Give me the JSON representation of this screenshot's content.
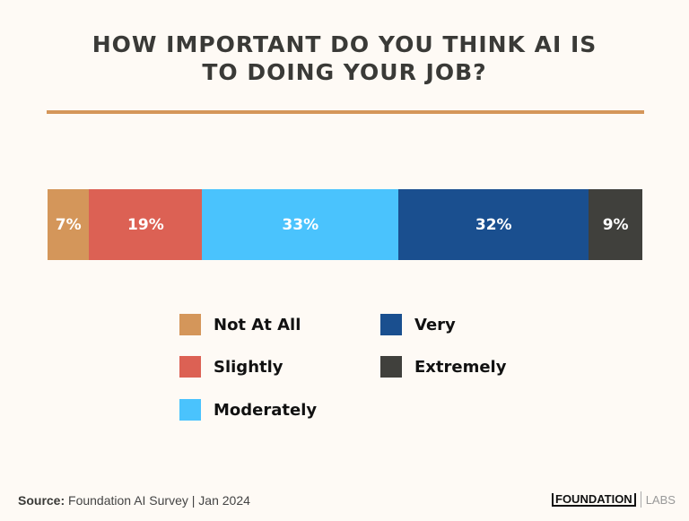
{
  "chart_data": {
    "type": "bar",
    "orientation": "horizontal-stacked-100",
    "title": "HOW IMPORTANT DO YOU THINK AI IS TO DOING YOUR JOB?",
    "title_lines": [
      "HOW IMPORTANT DO YOU THINK AI IS",
      "TO DOING YOUR JOB?"
    ],
    "series": [
      {
        "name": "Not At All",
        "value": 7,
        "label": "7%",
        "color": "#d4965a"
      },
      {
        "name": "Slightly",
        "value": 19,
        "label": "19%",
        "color": "#dc6154"
      },
      {
        "name": "Moderately",
        "value": 33,
        "label": "33%",
        "color": "#4ac3fd"
      },
      {
        "name": "Very",
        "value": 32,
        "label": "32%",
        "color": "#1a4f8f"
      },
      {
        "name": "Extremely",
        "value": 9,
        "label": "9%",
        "color": "#40403c"
      }
    ],
    "legend_placement": "bottom",
    "grid": false
  },
  "footer": {
    "source_label": "Source:",
    "source_text": "Foundation AI Survey | Jan 2024",
    "logo_main": "FOUNDATION",
    "logo_sub": "LABS"
  }
}
